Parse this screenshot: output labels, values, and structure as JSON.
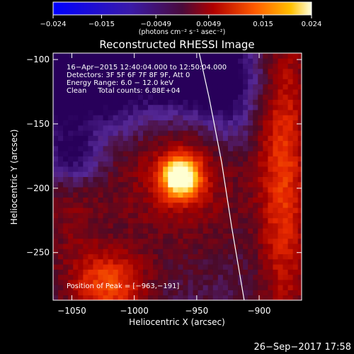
{
  "chart_data": {
    "type": "heatmap",
    "title": "Reconstructed RHESSI Image",
    "xlabel": "Heliocentric X (arcsec)",
    "ylabel": "Heliocentric Y (arcsec)",
    "xlim": [
      -1065,
      -866
    ],
    "ylim": [
      -287,
      -95
    ],
    "x_ticks": [
      -1050,
      -1000,
      -950,
      -900
    ],
    "y_ticks": [
      -250,
      -200,
      -150,
      -100
    ],
    "x_tick_labels": [
      "−1050",
      "−1000",
      "−950",
      "−900"
    ],
    "y_tick_labels": [
      "−250",
      "−200",
      "−150",
      "−100"
    ],
    "colorbar": {
      "range": [
        -0.024,
        0.024
      ],
      "ticks": [
        -0.024,
        -0.015,
        -0.0049,
        0.0049,
        0.015,
        0.024
      ],
      "tick_labels": [
        "−0.024",
        "−0.015",
        "−0.0049",
        "0.0049",
        "0.015",
        "0.024"
      ],
      "unit_label": "(photons cm⁻² s⁻¹ asec⁻²)"
    },
    "info_lines": [
      "16−Apr−2015 12:40:04.000 to 12:50:04.000",
      "Detectors: 3F 5F 6F 7F 8F 9F, Att 0",
      "Energy Range: 6.0 − 12.0 keV",
      "Clean     Total counts: 6.88E+04"
    ],
    "peak_label": "Position of Peak = [−963,−191]",
    "peak": [
      -963,
      -191
    ],
    "limb": [
      [
        -948,
        -95
      ],
      [
        -940,
        -130
      ],
      [
        -930,
        -180
      ],
      [
        -922,
        -230
      ],
      [
        -912,
        -287
      ]
    ]
  },
  "timestamp": "26−Sep−2017 17:58"
}
